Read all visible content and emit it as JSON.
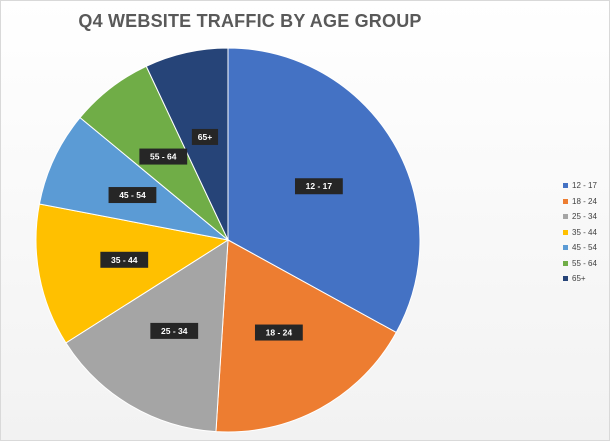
{
  "chart_data": {
    "type": "pie",
    "title": "Q4 WEBSITE TRAFFIC BY AGE GROUP",
    "categories": [
      "12 - 17",
      "18 - 24",
      "25 - 34",
      "35 - 44",
      "45 - 54",
      "55 - 64",
      "65+"
    ],
    "values": [
      33,
      18,
      15,
      12,
      8,
      7,
      7
    ],
    "colors": [
      "#4472C4",
      "#ED7D31",
      "#A5A5A5",
      "#FFC000",
      "#5B9BD5",
      "#70AD47",
      "#264478"
    ],
    "legend_position": "right",
    "start_angle_deg": 0,
    "direction": "clockwise",
    "data_labels": "category names"
  }
}
